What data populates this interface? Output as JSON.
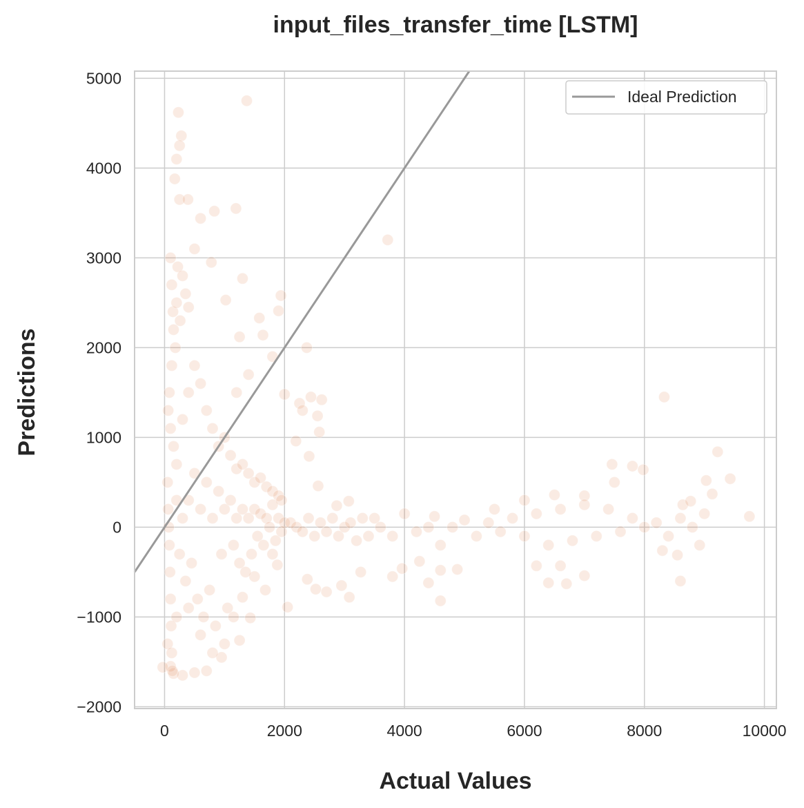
{
  "chart_data": {
    "type": "scatter",
    "title": "input_files_transfer_time [LSTM]",
    "xlabel": "Actual Values",
    "ylabel": "Predictions",
    "xlim": [
      -500,
      10200
    ],
    "ylim": [
      -2020,
      5080
    ],
    "xticks": [
      0,
      2000,
      4000,
      6000,
      8000,
      10000
    ],
    "yticks": [
      -2000,
      -1000,
      0,
      1000,
      2000,
      3000,
      4000,
      5000
    ],
    "xtick_labels": [
      "0",
      "2000",
      "4000",
      "6000",
      "8000",
      "10000"
    ],
    "ytick_labels": [
      "−2000",
      "−1000",
      "0",
      "1000",
      "2000",
      "3000",
      "4000",
      "5000"
    ],
    "grid": true,
    "legend": {
      "position": "top-right",
      "entries": [
        {
          "label": "Ideal Prediction",
          "color": "#999999"
        }
      ]
    },
    "reference_line": {
      "label": "Ideal Prediction",
      "slope": 1,
      "intercept": 0
    },
    "series": [
      {
        "color": "#e07b45",
        "opacity": 0.15,
        "points": [
          [
            230,
            4620
          ],
          [
            1370,
            4750
          ],
          [
            280,
            4360
          ],
          [
            250,
            4250
          ],
          [
            200,
            4100
          ],
          [
            170,
            3880
          ],
          [
            250,
            3650
          ],
          [
            390,
            3650
          ],
          [
            600,
            3440
          ],
          [
            830,
            3520
          ],
          [
            1190,
            3550
          ],
          [
            3720,
            3200
          ],
          [
            500,
            3100
          ],
          [
            780,
            2950
          ],
          [
            1300,
            2770
          ],
          [
            1020,
            2530
          ],
          [
            400,
            2450
          ],
          [
            1580,
            2330
          ],
          [
            1940,
            2580
          ],
          [
            1900,
            2410
          ],
          [
            1640,
            2140
          ],
          [
            1250,
            2120
          ],
          [
            2370,
            2000
          ],
          [
            1800,
            1900
          ],
          [
            1400,
            1700
          ],
          [
            2000,
            1480
          ],
          [
            2440,
            1450
          ],
          [
            2620,
            1420
          ],
          [
            2250,
            1380
          ],
          [
            2550,
            1240
          ],
          [
            2580,
            1060
          ],
          [
            2300,
            1300
          ],
          [
            1200,
            1500
          ],
          [
            2190,
            960
          ],
          [
            2410,
            790
          ],
          [
            2560,
            460
          ],
          [
            3070,
            290
          ],
          [
            2870,
            240
          ],
          [
            3500,
            100
          ],
          [
            4000,
            150
          ],
          [
            4500,
            120
          ],
          [
            5000,
            80
          ],
          [
            5500,
            200
          ],
          [
            6000,
            300
          ],
          [
            6500,
            360
          ],
          [
            7000,
            350
          ],
          [
            7500,
            500
          ],
          [
            7800,
            680
          ],
          [
            7460,
            700
          ],
          [
            7980,
            640
          ],
          [
            8330,
            1450
          ],
          [
            9220,
            840
          ],
          [
            9430,
            540
          ],
          [
            9030,
            520
          ],
          [
            9130,
            370
          ],
          [
            9750,
            120
          ],
          [
            8640,
            250
          ],
          [
            8770,
            290
          ],
          [
            2950,
            -650
          ],
          [
            3270,
            -500
          ],
          [
            3800,
            -550
          ],
          [
            3960,
            -460
          ],
          [
            4250,
            -380
          ],
          [
            4600,
            -820
          ],
          [
            4400,
            -620
          ],
          [
            4600,
            -480
          ],
          [
            4880,
            -470
          ],
          [
            6200,
            -430
          ],
          [
            6400,
            -620
          ],
          [
            6700,
            -630
          ],
          [
            6600,
            -430
          ],
          [
            7000,
            -540
          ],
          [
            8300,
            -260
          ],
          [
            8600,
            -600
          ],
          [
            8550,
            -310
          ],
          [
            8920,
            -200
          ],
          [
            2050,
            -890
          ],
          [
            2380,
            -580
          ],
          [
            2520,
            -690
          ],
          [
            2700,
            -720
          ],
          [
            3080,
            -780
          ],
          [
            1880,
            -420
          ],
          [
            1680,
            -700
          ],
          [
            1430,
            -1010
          ],
          [
            1250,
            -1260
          ],
          [
            950,
            -1450
          ],
          [
            700,
            -1600
          ],
          [
            500,
            -1620
          ],
          [
            300,
            -1650
          ],
          [
            150,
            -1630
          ],
          [
            100,
            -1550
          ],
          [
            -30,
            -1560
          ],
          [
            50,
            -1300
          ],
          [
            200,
            -1000
          ],
          [
            400,
            -900
          ],
          [
            600,
            -1200
          ],
          [
            800,
            -1400
          ],
          [
            1000,
            -1300
          ],
          [
            1150,
            -1000
          ],
          [
            1300,
            -780
          ],
          [
            1500,
            -550
          ],
          [
            1800,
            -300
          ],
          [
            100,
            3000
          ],
          [
            120,
            2700
          ],
          [
            140,
            2400
          ],
          [
            150,
            2200
          ],
          [
            200,
            2500
          ],
          [
            220,
            2900
          ],
          [
            300,
            2800
          ],
          [
            350,
            2600
          ],
          [
            260,
            2300
          ],
          [
            180,
            2000
          ],
          [
            120,
            1800
          ],
          [
            80,
            1500
          ],
          [
            60,
            1300
          ],
          [
            100,
            1100
          ],
          [
            150,
            900
          ],
          [
            200,
            700
          ],
          [
            300,
            1200
          ],
          [
            400,
            1500
          ],
          [
            500,
            1800
          ],
          [
            600,
            1600
          ],
          [
            700,
            1300
          ],
          [
            800,
            1100
          ],
          [
            900,
            900
          ],
          [
            1000,
            1000
          ],
          [
            1100,
            800
          ],
          [
            1200,
            650
          ],
          [
            1300,
            700
          ],
          [
            1400,
            600
          ],
          [
            1500,
            500
          ],
          [
            1600,
            550
          ],
          [
            1700,
            450
          ],
          [
            1800,
            400
          ],
          [
            1900,
            350
          ],
          [
            1950,
            300
          ],
          [
            50,
            500
          ],
          [
            60,
            200
          ],
          [
            70,
            0
          ],
          [
            80,
            -200
          ],
          [
            90,
            -500
          ],
          [
            100,
            -800
          ],
          [
            110,
            -1100
          ],
          [
            120,
            -1400
          ],
          [
            130,
            -1600
          ],
          [
            200,
            300
          ],
          [
            250,
            -300
          ],
          [
            300,
            100
          ],
          [
            350,
            -600
          ],
          [
            400,
            300
          ],
          [
            450,
            -400
          ],
          [
            500,
            600
          ],
          [
            550,
            -800
          ],
          [
            600,
            200
          ],
          [
            650,
            -1000
          ],
          [
            700,
            500
          ],
          [
            750,
            -700
          ],
          [
            800,
            100
          ],
          [
            850,
            -1100
          ],
          [
            900,
            400
          ],
          [
            950,
            -300
          ],
          [
            1000,
            200
          ],
          [
            1050,
            -900
          ],
          [
            1100,
            300
          ],
          [
            1150,
            -200
          ],
          [
            1200,
            100
          ],
          [
            1250,
            -400
          ],
          [
            1300,
            200
          ],
          [
            1350,
            -500
          ],
          [
            1400,
            100
          ],
          [
            1450,
            -300
          ],
          [
            1500,
            200
          ],
          [
            1550,
            -100
          ],
          [
            1600,
            150
          ],
          [
            1650,
            -200
          ],
          [
            1700,
            100
          ],
          [
            1750,
            0
          ],
          [
            1800,
            250
          ],
          [
            1850,
            -150
          ],
          [
            1900,
            100
          ],
          [
            1950,
            -50
          ],
          [
            2000,
            50
          ],
          [
            2100,
            50
          ],
          [
            2200,
            0
          ],
          [
            2300,
            -50
          ],
          [
            2400,
            100
          ],
          [
            2500,
            -100
          ],
          [
            2600,
            50
          ],
          [
            2700,
            -50
          ],
          [
            2800,
            100
          ],
          [
            2900,
            -100
          ],
          [
            3000,
            0
          ],
          [
            3100,
            50
          ],
          [
            3200,
            -150
          ],
          [
            3300,
            100
          ],
          [
            3400,
            -100
          ],
          [
            3600,
            0
          ],
          [
            3800,
            -100
          ],
          [
            4200,
            -50
          ],
          [
            4400,
            0
          ],
          [
            4600,
            -200
          ],
          [
            4800,
            0
          ],
          [
            5200,
            -100
          ],
          [
            5400,
            50
          ],
          [
            5600,
            -50
          ],
          [
            5800,
            100
          ],
          [
            6000,
            -100
          ],
          [
            6200,
            150
          ],
          [
            6400,
            -200
          ],
          [
            6600,
            200
          ],
          [
            6800,
            -150
          ],
          [
            7000,
            250
          ],
          [
            7200,
            -100
          ],
          [
            7400,
            200
          ],
          [
            7600,
            -50
          ],
          [
            7800,
            100
          ],
          [
            8000,
            0
          ],
          [
            8200,
            50
          ],
          [
            8400,
            -100
          ],
          [
            8600,
            100
          ],
          [
            8800,
            0
          ],
          [
            9000,
            150
          ]
        ]
      }
    ]
  }
}
